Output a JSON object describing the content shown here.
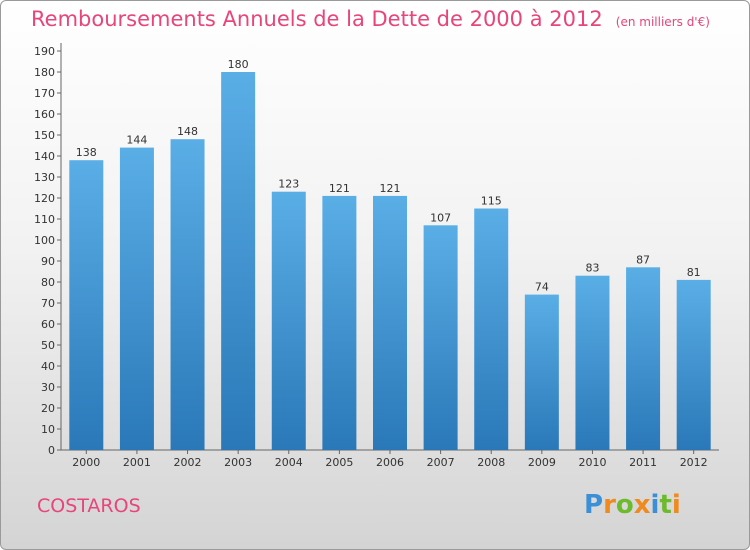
{
  "header": {
    "title": "Remboursements Annuels de la Dette de 2000 à 2012",
    "unit": "(en milliers d'€)"
  },
  "commune": "COSTAROS",
  "logo": {
    "text": "Proxiti"
  },
  "colors": {
    "bar_top": "#5aaee6",
    "bar_bottom": "#2a78b8",
    "title": "#e8457a"
  },
  "chart_data": {
    "type": "bar",
    "title": "Remboursements Annuels de la Dette de 2000 à 2012",
    "subtitle": "(en milliers d'€)",
    "categories": [
      "2000",
      "2001",
      "2002",
      "2003",
      "2004",
      "2005",
      "2006",
      "2007",
      "2008",
      "2009",
      "2010",
      "2011",
      "2012"
    ],
    "values": [
      138,
      144,
      148,
      180,
      123,
      121,
      121,
      107,
      115,
      74,
      83,
      87,
      81
    ],
    "ylim": [
      0,
      190
    ],
    "yticks": [
      0,
      10,
      20,
      30,
      40,
      50,
      60,
      70,
      80,
      90,
      100,
      110,
      120,
      130,
      140,
      150,
      160,
      170,
      180,
      190
    ],
    "grid": false,
    "legend": "none"
  }
}
